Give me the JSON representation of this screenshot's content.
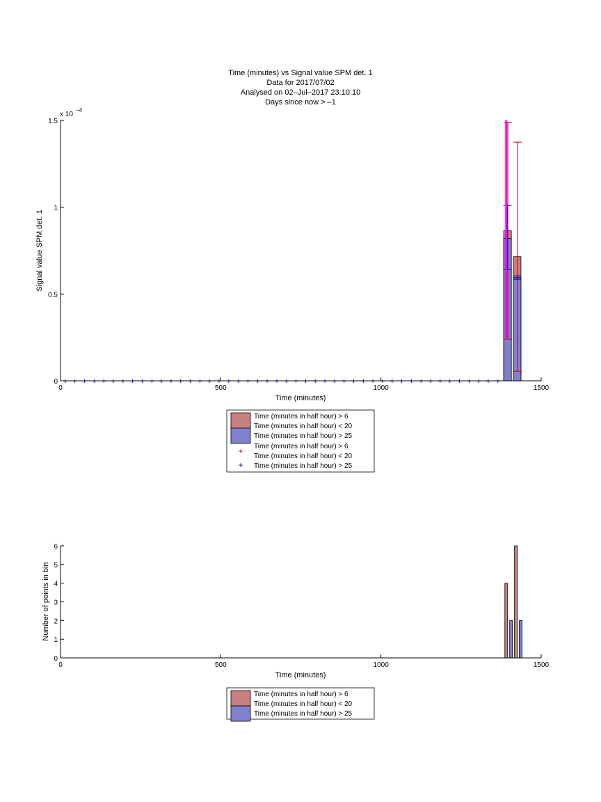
{
  "chart_data": [
    {
      "type": "bar",
      "title_lines": [
        "Time (minutes) vs Signal value SPM det. 1",
        "Data for 2017/07/02",
        "Analysed on 02–Jul–2017 23:10:10",
        "Days since now > –1"
      ],
      "xlabel": "Time (minutes)",
      "ylabel": "Signal value SPM det. 1",
      "y_multiplier": "x 10",
      "y_exponent": "−4",
      "xlim": [
        0,
        1500
      ],
      "ylim": [
        0,
        0.00015
      ],
      "xticks": [
        0,
        500,
        1000,
        1500
      ],
      "xtick_labels": [
        "0",
        "500",
        "1000",
        "1500"
      ],
      "yticks": [
        0,
        5e-05,
        0.0001,
        0.00015
      ],
      "ytick_labels": [
        "0",
        "0.5",
        "1",
        "1.5"
      ],
      "grid": false,
      "legend_position": "below",
      "legend": [
        "Time (minutes in half hour) > 6",
        "Time (minutes in half hour) < 20",
        "Time (minutes in half hour) > 25",
        "Time (minutes in half hour) > 6",
        "Time (minutes in half hour) < 20",
        "Time (minutes in half hour) > 25"
      ],
      "series": [
        {
          "legend_index": 0,
          "kind": "bar",
          "color": "#c98080",
          "bars": [
            {
              "x": 1395,
              "value": 8.65e-05
            },
            {
              "x": 1425,
              "value": 7.15e-05
            }
          ]
        },
        {
          "legend_index": 2,
          "kind": "bar",
          "color": "#8080d0",
          "bars": [
            {
              "x": 1395,
              "value": 8.2e-05
            },
            {
              "x": 1425,
              "value": 5.95e-05
            }
          ]
        }
      ],
      "error_bars": [
        {
          "x": 1396,
          "low": 2.4e-05,
          "high": 0.000149,
          "color": "#cc0000"
        },
        {
          "x": 1426,
          "low": 5.5e-06,
          "high": 0.0001375,
          "color": "#cc0000"
        },
        {
          "x": 1395,
          "low": 6.4e-05,
          "high": 0.000101,
          "color": "#0000cc"
        },
        {
          "x": 1425,
          "low": 5.85e-05,
          "high": 6.05e-05,
          "color": "#0000cc"
        }
      ],
      "highlight_line": {
        "x": 1391,
        "low": 2.45e-05,
        "high": 0.00015,
        "color": "#ff00ff"
      },
      "markers": {
        "symbol": "+",
        "color": "#0000cc",
        "y": 0,
        "x_start": 15,
        "x_end": 1365,
        "x_step": 30
      },
      "legend_marker_colors": [
        "#dd0000",
        "#0000cc"
      ]
    },
    {
      "type": "bar",
      "xlabel": "Time (minutes)",
      "ylabel": "Number of points in bin",
      "xlim": [
        0,
        1500
      ],
      "ylim": [
        0,
        6
      ],
      "xticks": [
        0,
        500,
        1000,
        1500
      ],
      "xtick_labels": [
        "0",
        "500",
        "1000",
        "1500"
      ],
      "yticks": [
        0,
        1,
        2,
        3,
        4,
        5,
        6
      ],
      "ytick_labels": [
        "0",
        "1",
        "2",
        "3",
        "4",
        "5",
        "6"
      ],
      "grid": false,
      "legend_position": "below",
      "legend": [
        "Time (minutes in half hour) > 6",
        "Time (minutes in half hour) < 20",
        "Time (minutes in half hour) > 25"
      ],
      "series": [
        {
          "legend_index": 0,
          "kind": "bar",
          "color": "#c98080",
          "bars": [
            {
              "x": 1391,
              "value": 4
            },
            {
              "x": 1421,
              "value": 6
            }
          ]
        },
        {
          "legend_index": 2,
          "kind": "bar",
          "color": "#8080d0",
          "bars": [
            {
              "x": 1406,
              "value": 2
            },
            {
              "x": 1436,
              "value": 2
            }
          ]
        }
      ]
    }
  ]
}
